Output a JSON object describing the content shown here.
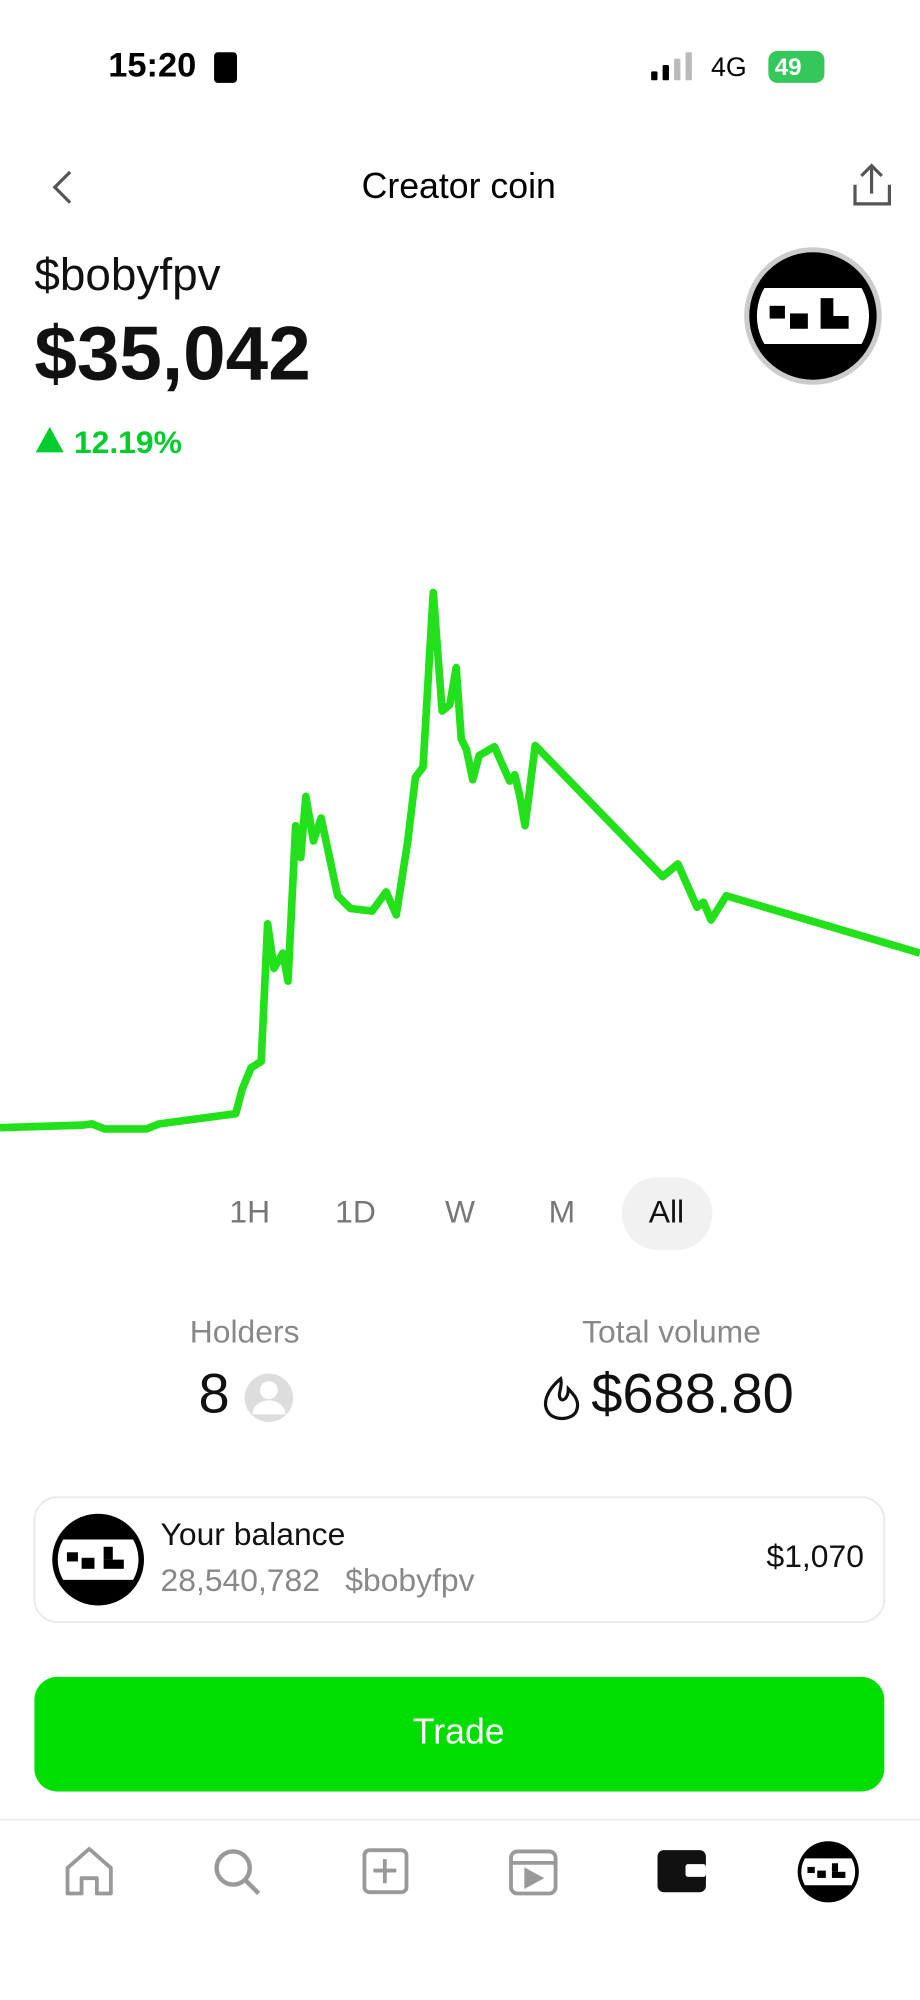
{
  "status_bar": {
    "time": "15:20",
    "network": "4G",
    "battery": "49"
  },
  "header": {
    "title": "Creator coin"
  },
  "coin": {
    "ticker": "$bobyfpv",
    "price": "$35,042",
    "change": "12.19%"
  },
  "time_ranges": [
    "1H",
    "1D",
    "W",
    "M",
    "All"
  ],
  "stats": {
    "holders": {
      "label": "Holders",
      "value": "8"
    },
    "total_volume": {
      "label": "Total volume",
      "value": "$688.80"
    }
  },
  "balance": {
    "label": "Your balance",
    "amount": "28,540,782",
    "ticker": "$bobyfpv",
    "value": "$1,070"
  },
  "trade_button": "Trade"
}
